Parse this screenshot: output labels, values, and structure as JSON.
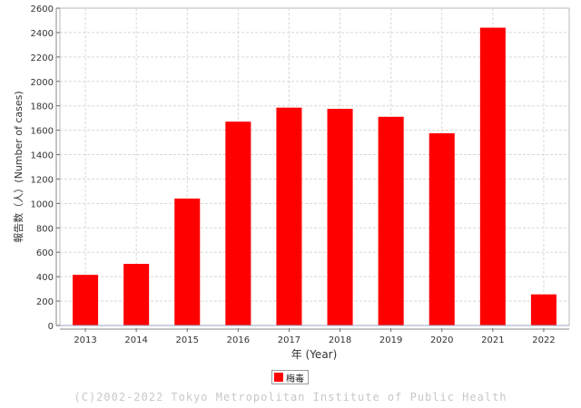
{
  "chart_data": {
    "type": "bar",
    "categories": [
      "2013",
      "2014",
      "2015",
      "2016",
      "2017",
      "2018",
      "2019",
      "2020",
      "2021",
      "2022"
    ],
    "series": [
      {
        "name": "梅毒",
        "values": [
          415,
          505,
          1040,
          1670,
          1785,
          1775,
          1710,
          1575,
          2440,
          255
        ],
        "color": "#ff0000"
      }
    ],
    "ylabel": "報告数（人）(Number of cases)",
    "xlabel": "年 (Year)",
    "ylim": [
      0,
      2600
    ],
    "yticks": [
      0,
      200,
      400,
      600,
      800,
      1000,
      1200,
      1400,
      1600,
      1800,
      2000,
      2200,
      2400,
      2600
    ],
    "grid": true,
    "legend_position": "bottom-center"
  },
  "legend": {
    "label": "梅毒",
    "color": "#ff0000"
  },
  "footer": {
    "copyright": "(C)2002-2022 Tokyo Metropolitan Institute of Public Health"
  }
}
